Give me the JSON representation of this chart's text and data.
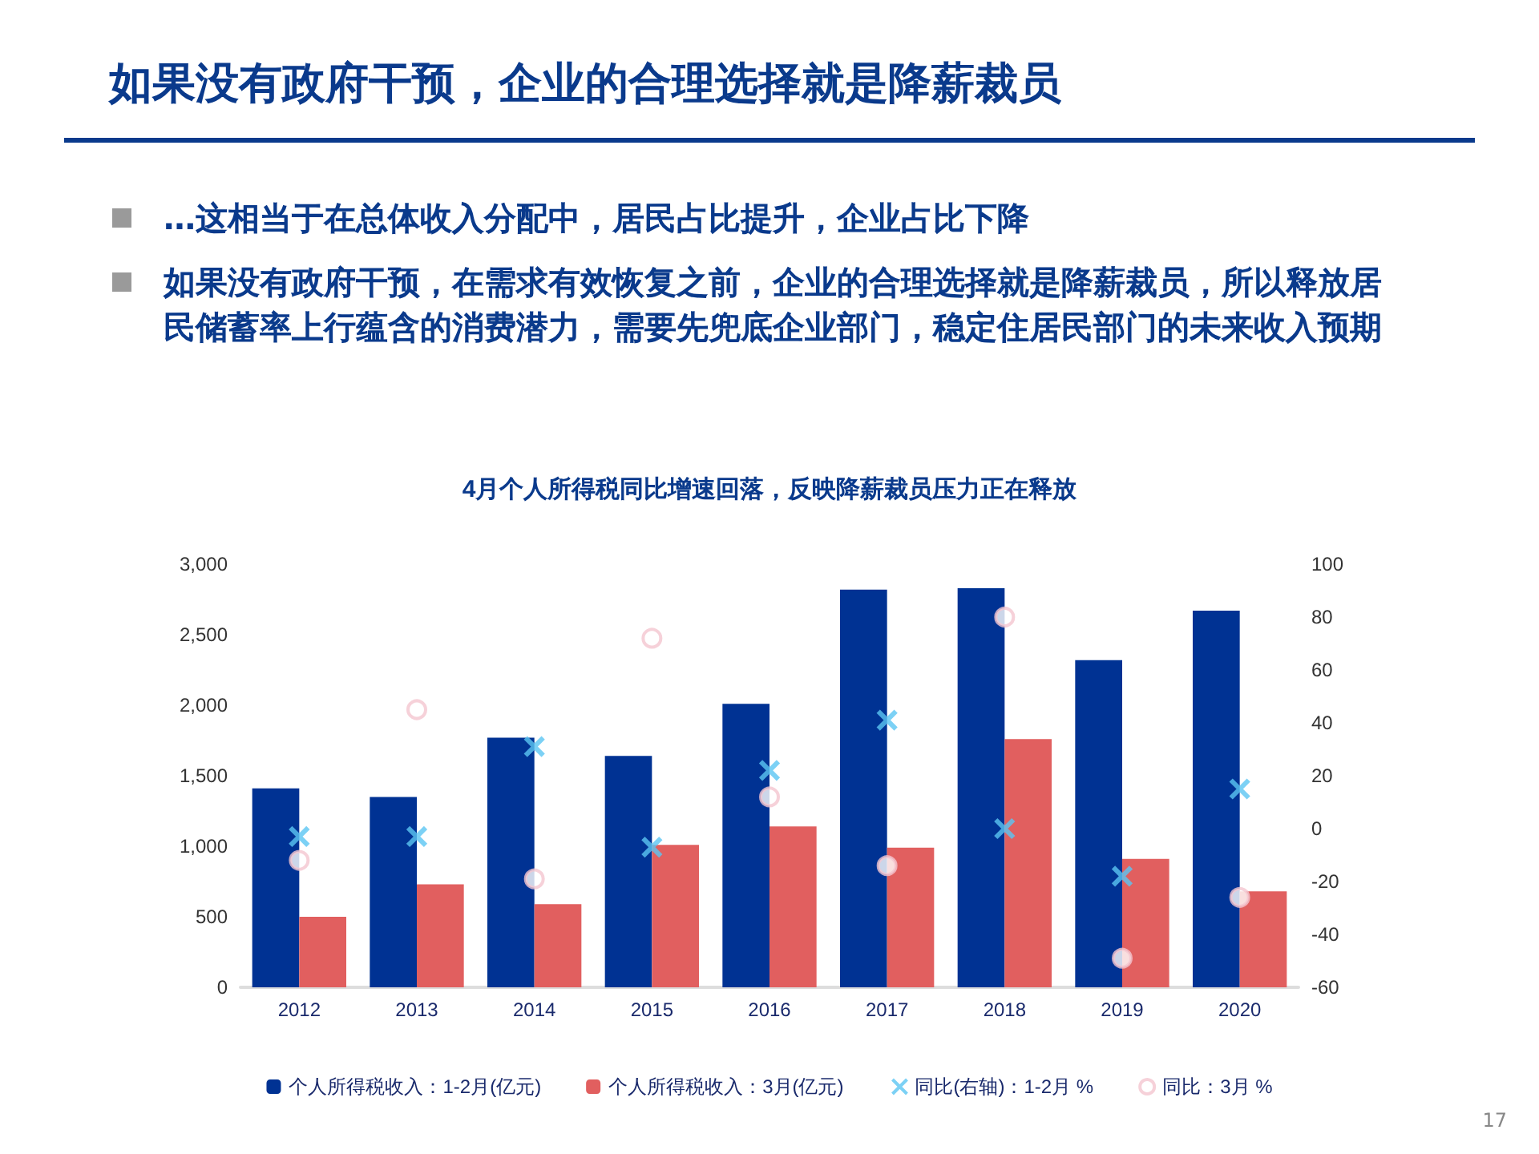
{
  "chart_data": {
    "type": "bar",
    "title": "4月个人所得税同比增速回落，反映降薪裁员压力正在释放",
    "annotations": [
      "如果没有政府干预，企业的合理选择就是降薪裁员",
      "…这相当于在总体收入分配中，居民占比提升，企业占比下降",
      "如果没有政府干预，在需求有效恢复之前，企业的合理选择就是降薪裁员，所以释放居民储蓄率上行蕴含的消费潜力，需要先兜底企业部门，稳定住居民部门的未来收入预期",
      "17"
    ],
    "categories": [
      "2012",
      "2013",
      "2014",
      "2015",
      "2016",
      "2017",
      "2018",
      "2019",
      "2020"
    ],
    "series": [
      {
        "name": "个人所得税收入：1-2月(亿元)",
        "color": "#003293",
        "values": [
          1410,
          1350,
          1770,
          1640,
          2010,
          2820,
          2830,
          2320,
          2670
        ]
      },
      {
        "name": "个人所得税收入：3月(亿元)",
        "color": "#e15f5f",
        "values": [
          500,
          730,
          590,
          1010,
          1140,
          990,
          1760,
          910,
          680
        ]
      },
      {
        "name": "同比(右轴)：1-2月 %",
        "type": "scatter",
        "axis": "y2",
        "marker": "cross",
        "color": "#5bc5f2",
        "values": [
          -3,
          -3,
          31,
          -7,
          22,
          41,
          0,
          -18,
          15
        ]
      },
      {
        "name": "同比：3月 %",
        "type": "scatter",
        "axis": "y2",
        "marker": "circle",
        "color": "#f4c6cf",
        "values": [
          -12,
          45,
          -19,
          72,
          12,
          -14,
          80,
          -49,
          -26
        ]
      }
    ],
    "ylim": [
      0,
      3000
    ],
    "yticks": [
      0,
      500,
      {
        "value": 1000,
        "label": "1,000"
      },
      {
        "value": 1500,
        "label": "1,500"
      },
      {
        "value": 2000,
        "label": "2,000"
      },
      {
        "value": 2500,
        "label": "2,500"
      },
      {
        "value": 3000,
        "label": "3,000"
      }
    ],
    "y2lim": [
      -60,
      100
    ],
    "y2ticks": [
      -60,
      -40,
      -20,
      0,
      20,
      40,
      60,
      80,
      100
    ],
    "grid": false,
    "legend": "bottom"
  }
}
